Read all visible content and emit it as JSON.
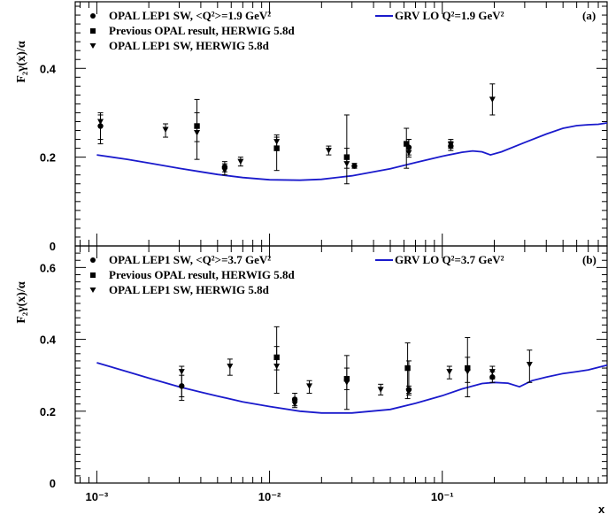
{
  "chart_data": [
    {
      "type": "scatter",
      "panel": "(a)",
      "ylabel": "F₂γ(x)/α",
      "xlabel": "x",
      "xscale": "log",
      "xlim": [
        0.00075,
        0.9
      ],
      "ylim": [
        0,
        0.55
      ],
      "yticks": [
        "0",
        "0.2",
        "0.4"
      ],
      "xticks": [
        "10⁻³",
        "10⁻²",
        "10⁻¹"
      ],
      "legend_position": "top-left",
      "curve_legend_position": "top-right",
      "legend": [
        {
          "marker": "circle",
          "label": "OPAL LEP1 SW, <Q²>=1.9 GeV²"
        },
        {
          "marker": "square",
          "label": "Previous OPAL result, HERWIG 5.8d"
        },
        {
          "marker": "triangle",
          "label": "OPAL LEP1 SW, HERWIG 5.8d"
        }
      ],
      "curve_label": "GRV LO Q²=1.9 GeV²",
      "series": [
        {
          "name": "OPAL LEP1 SW, <Q²>=1.9 GeV²",
          "marker": "circle",
          "points": [
            {
              "x": 0.00105,
              "y": 0.27,
              "lo": 0.24,
              "hi": 0.3
            },
            {
              "x": 0.0055,
              "y": 0.178,
              "lo": 0.167,
              "hi": 0.19
            },
            {
              "x": 0.031,
              "y": 0.18,
              "lo": 0.175,
              "hi": 0.186
            },
            {
              "x": 0.064,
              "y": 0.222,
              "lo": 0.205,
              "hi": 0.24
            },
            {
              "x": 0.112,
              "y": 0.225,
              "lo": 0.215,
              "hi": 0.235
            }
          ]
        },
        {
          "name": "Previous OPAL result, HERWIG 5.8d",
          "marker": "square",
          "points": [
            {
              "x": 0.0038,
              "y": 0.27,
              "lo": 0.195,
              "hi": 0.33
            },
            {
              "x": 0.011,
              "y": 0.22,
              "lo": 0.17,
              "hi": 0.25
            },
            {
              "x": 0.028,
              "y": 0.2,
              "lo": 0.14,
              "hi": 0.295
            },
            {
              "x": 0.062,
              "y": 0.23,
              "lo": 0.175,
              "hi": 0.265
            }
          ]
        },
        {
          "name": "OPAL LEP1 SW, HERWIG 5.8d",
          "marker": "triangle",
          "points": [
            {
              "x": 0.00105,
              "y": 0.28,
              "lo": 0.23,
              "hi": 0.295
            },
            {
              "x": 0.0025,
              "y": 0.262,
              "lo": 0.245,
              "hi": 0.275
            },
            {
              "x": 0.0038,
              "y": 0.255,
              "lo": 0.235,
              "hi": 0.3
            },
            {
              "x": 0.0055,
              "y": 0.17,
              "lo": 0.16,
              "hi": 0.185
            },
            {
              "x": 0.0068,
              "y": 0.19,
              "lo": 0.18,
              "hi": 0.2
            },
            {
              "x": 0.011,
              "y": 0.235,
              "lo": 0.215,
              "hi": 0.245
            },
            {
              "x": 0.022,
              "y": 0.215,
              "lo": 0.205,
              "hi": 0.225
            },
            {
              "x": 0.028,
              "y": 0.185,
              "lo": 0.175,
              "hi": 0.22
            },
            {
              "x": 0.064,
              "y": 0.21,
              "lo": 0.2,
              "hi": 0.24
            },
            {
              "x": 0.112,
              "y": 0.228,
              "lo": 0.22,
              "hi": 0.24
            },
            {
              "x": 0.195,
              "y": 0.33,
              "lo": 0.295,
              "hi": 0.365
            }
          ]
        }
      ],
      "curve": {
        "color": "#1a1acc",
        "x": [
          0.001,
          0.0015,
          0.002,
          0.003,
          0.004,
          0.005,
          0.007,
          0.01,
          0.015,
          0.02,
          0.03,
          0.05,
          0.07,
          0.1,
          0.13,
          0.15,
          0.17,
          0.19,
          0.22,
          0.3,
          0.4,
          0.5,
          0.6,
          0.7,
          0.8,
          0.9
        ],
        "y": [
          0.205,
          0.195,
          0.187,
          0.175,
          0.167,
          0.161,
          0.154,
          0.149,
          0.148,
          0.15,
          0.158,
          0.174,
          0.188,
          0.202,
          0.211,
          0.214,
          0.212,
          0.205,
          0.212,
          0.233,
          0.252,
          0.265,
          0.271,
          0.273,
          0.274,
          0.277
        ]
      }
    },
    {
      "type": "scatter",
      "panel": "(b)",
      "ylabel": "F₂γ(x)/α",
      "xlabel": "x",
      "xscale": "log",
      "xlim": [
        0.00075,
        0.9
      ],
      "ylim": [
        0,
        0.66
      ],
      "yticks": [
        "0",
        "0.2",
        "0.4",
        "0.6"
      ],
      "xticks": [
        "10⁻³",
        "10⁻²",
        "10⁻¹"
      ],
      "legend_position": "top-left",
      "curve_legend_position": "top-right",
      "legend": [
        {
          "marker": "circle",
          "label": "OPAL LEP1 SW, <Q²>=3.7 GeV²"
        },
        {
          "marker": "square",
          "label": "Previous OPAL result, HERWIG 5.8d"
        },
        {
          "marker": "triangle",
          "label": "OPAL LEP1 SW, HERWIG 5.8d"
        }
      ],
      "curve_label": "GRV LO Q²=3.7 GeV²",
      "series": [
        {
          "name": "OPAL LEP1 SW, <Q²>=3.7 GeV²",
          "marker": "circle",
          "points": [
            {
              "x": 0.0031,
              "y": 0.27,
              "lo": 0.24,
              "hi": 0.3
            },
            {
              "x": 0.014,
              "y": 0.233,
              "lo": 0.215,
              "hi": 0.25
            },
            {
              "x": 0.064,
              "y": 0.26,
              "lo": 0.25,
              "hi": 0.27
            },
            {
              "x": 0.195,
              "y": 0.295,
              "lo": 0.28,
              "hi": 0.31
            }
          ]
        },
        {
          "name": "Previous OPAL result, HERWIG 5.8d",
          "marker": "square",
          "points": [
            {
              "x": 0.011,
              "y": 0.35,
              "lo": 0.25,
              "hi": 0.435
            },
            {
              "x": 0.028,
              "y": 0.29,
              "lo": 0.205,
              "hi": 0.355
            },
            {
              "x": 0.063,
              "y": 0.32,
              "lo": 0.235,
              "hi": 0.39
            },
            {
              "x": 0.14,
              "y": 0.32,
              "lo": 0.24,
              "hi": 0.405
            }
          ]
        },
        {
          "name": "OPAL LEP1 SW, HERWIG 5.8d",
          "marker": "triangle",
          "points": [
            {
              "x": 0.0031,
              "y": 0.31,
              "lo": 0.23,
              "hi": 0.325
            },
            {
              "x": 0.0059,
              "y": 0.325,
              "lo": 0.3,
              "hi": 0.345
            },
            {
              "x": 0.011,
              "y": 0.325,
              "lo": 0.315,
              "hi": 0.38
            },
            {
              "x": 0.014,
              "y": 0.22,
              "lo": 0.21,
              "hi": 0.23
            },
            {
              "x": 0.017,
              "y": 0.27,
              "lo": 0.25,
              "hi": 0.285
            },
            {
              "x": 0.028,
              "y": 0.28,
              "lo": 0.26,
              "hi": 0.32
            },
            {
              "x": 0.044,
              "y": 0.26,
              "lo": 0.245,
              "hi": 0.275
            },
            {
              "x": 0.064,
              "y": 0.255,
              "lo": 0.245,
              "hi": 0.34
            },
            {
              "x": 0.11,
              "y": 0.31,
              "lo": 0.29,
              "hi": 0.325
            },
            {
              "x": 0.14,
              "y": 0.31,
              "lo": 0.28,
              "hi": 0.35
            },
            {
              "x": 0.195,
              "y": 0.31,
              "lo": 0.29,
              "hi": 0.325
            },
            {
              "x": 0.32,
              "y": 0.33,
              "lo": 0.28,
              "hi": 0.37
            }
          ]
        }
      ],
      "curve": {
        "color": "#1a1acc",
        "x": [
          0.001,
          0.0015,
          0.002,
          0.003,
          0.004,
          0.005,
          0.007,
          0.01,
          0.015,
          0.02,
          0.03,
          0.05,
          0.07,
          0.1,
          0.13,
          0.17,
          0.2,
          0.24,
          0.28,
          0.33,
          0.4,
          0.5,
          0.6,
          0.7,
          0.8,
          0.9
        ],
        "y": [
          0.335,
          0.31,
          0.292,
          0.268,
          0.253,
          0.242,
          0.226,
          0.213,
          0.2,
          0.195,
          0.195,
          0.205,
          0.222,
          0.243,
          0.262,
          0.277,
          0.28,
          0.278,
          0.268,
          0.285,
          0.295,
          0.305,
          0.31,
          0.315,
          0.322,
          0.328
        ]
      }
    }
  ],
  "figure": {
    "xlabel_tail": "x"
  }
}
